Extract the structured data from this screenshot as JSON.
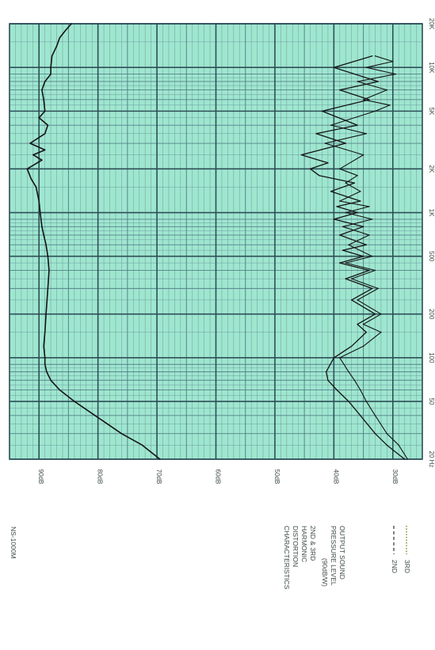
{
  "model_label": "NS-1000M",
  "legend": {
    "title_lines": [
      "2ND & 3RD",
      "HARMONIC",
      "DISTORTION",
      "CHARACTERISTICS"
    ],
    "output_lines": [
      "OUTPUT SOUND",
      "PRESSURE LEVEL",
      "(90dB/W)"
    ],
    "series": [
      {
        "name": "2ND",
        "color": "#333333",
        "style": "dashed"
      },
      {
        "name": "3RD",
        "color": "#888833",
        "style": "dotted"
      }
    ]
  },
  "colors": {
    "grid_background": "#9fe6cf",
    "major_grid": "#2e4f58",
    "minor_grid": "#55818a",
    "curve": "#141414"
  },
  "chart_data": {
    "type": "line",
    "orientation": "rotated 90 degrees clockwise (frequency runs top-to-bottom along the right edge)",
    "x_scale": "log",
    "xlim": [
      20,
      20000
    ],
    "ylim": [
      25,
      95
    ],
    "x_ticks": [
      {
        "value": 20,
        "label": "20 Hz"
      },
      {
        "value": 50,
        "label": "50"
      },
      {
        "value": 100,
        "label": "100"
      },
      {
        "value": 200,
        "label": "200"
      },
      {
        "value": 500,
        "label": "500"
      },
      {
        "value": 1000,
        "label": "1K"
      },
      {
        "value": 2000,
        "label": "2K"
      },
      {
        "value": 5000,
        "label": "5K"
      },
      {
        "value": 10000,
        "label": "10K"
      },
      {
        "value": 20000,
        "label": "20K"
      }
    ],
    "y_ticks": [
      {
        "value": 90,
        "label": "90dB"
      },
      {
        "value": 80,
        "label": "80dB"
      },
      {
        "value": 70,
        "label": "70dB"
      },
      {
        "value": 60,
        "label": "60dB"
      },
      {
        "value": 50,
        "label": "50dB"
      },
      {
        "value": 40,
        "label": "40dB"
      },
      {
        "value": 30,
        "label": "30dB"
      }
    ],
    "grid": true,
    "series": [
      {
        "name": "OUTPUT SOUND PRESSURE LEVEL",
        "x": [
          20,
          25,
          30,
          40,
          50,
          60,
          70,
          80,
          90,
          100,
          120,
          150,
          200,
          300,
          400,
          500,
          600,
          700,
          800,
          1000,
          1200,
          1500,
          1700,
          2000,
          2300,
          2500,
          2700,
          3000,
          3500,
          4000,
          4500,
          5000,
          6000,
          7000,
          8000,
          9000,
          10000,
          12000,
          14000,
          16000,
          18000,
          20000
        ],
        "y": [
          69.5,
          72.5,
          76.0,
          80.5,
          84.0,
          86.5,
          88.0,
          88.7,
          89.0,
          89.0,
          89.2,
          89.0,
          88.8,
          88.5,
          88.3,
          88.5,
          88.8,
          89.2,
          89.5,
          89.8,
          90.0,
          90.5,
          91.3,
          92.0,
          89.5,
          91.0,
          89.0,
          91.5,
          89.0,
          88.5,
          90.0,
          89.0,
          89.2,
          89.5,
          89.0,
          88.0,
          88.0,
          87.8,
          87.0,
          86.5,
          85.5,
          84.5
        ]
      },
      {
        "name": "2ND",
        "x": [
          20,
          25,
          30,
          40,
          50,
          60,
          70,
          80,
          100,
          120,
          150,
          170,
          200,
          250,
          300,
          350,
          400,
          450,
          500,
          550,
          600,
          700,
          800,
          900,
          1000,
          1100,
          1200,
          1400,
          1600,
          1800,
          2000,
          2200,
          2500,
          3000,
          3500,
          4000,
          5000,
          6000,
          7000,
          8000,
          10000,
          12000
        ],
        "y": [
          28.0,
          31.0,
          33.0,
          35.5,
          37.5,
          39.5,
          41.0,
          41.3,
          40.0,
          37.0,
          34.5,
          36.0,
          33.0,
          37.0,
          33.5,
          38.0,
          34.0,
          39.0,
          35.0,
          38.5,
          34.5,
          39.0,
          35.0,
          40.0,
          36.0,
          39.5,
          35.5,
          40.5,
          36.5,
          42.5,
          44.0,
          41.0,
          45.5,
          38.0,
          43.0,
          36.0,
          42.0,
          34.0,
          39.0,
          32.5,
          40.0,
          33.5
        ]
      },
      {
        "name": "3RD",
        "x": [
          20,
          25,
          30,
          40,
          50,
          60,
          70,
          80,
          100,
          120,
          150,
          170,
          200,
          250,
          300,
          350,
          400,
          450,
          500,
          600,
          700,
          800,
          900,
          1000,
          1100,
          1200,
          1400,
          1600,
          1800,
          2000,
          2500,
          3000,
          3500,
          4000,
          5000,
          5500,
          6000,
          7000,
          8000,
          9000,
          10000,
          11000,
          12000
        ],
        "y": [
          27.5,
          29.0,
          31.0,
          33.0,
          34.5,
          35.5,
          36.5,
          37.5,
          39.0,
          35.0,
          32.0,
          35.0,
          32.0,
          36.0,
          32.5,
          37.0,
          33.0,
          38.0,
          33.5,
          37.5,
          34.0,
          38.5,
          33.5,
          38.0,
          34.0,
          39.0,
          35.5,
          38.0,
          36.0,
          39.0,
          35.0,
          41.5,
          34.5,
          40.5,
          33.0,
          30.5,
          35.0,
          31.0,
          36.0,
          29.5,
          34.5,
          30.0,
          33.0
        ]
      }
    ]
  }
}
